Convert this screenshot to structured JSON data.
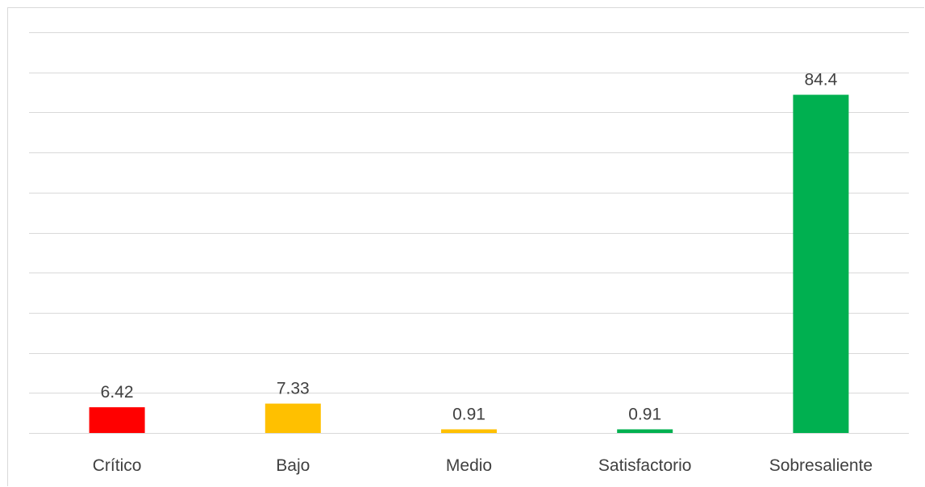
{
  "chart_data": {
    "type": "bar",
    "title": "",
    "xlabel": "",
    "ylabel": "",
    "categories": [
      "Crítico",
      "Bajo",
      "Medio",
      "Satisfactorio",
      "Sobresaliente"
    ],
    "values": [
      6.42,
      7.33,
      0.91,
      0.91,
      84.4
    ],
    "value_labels": [
      "6.42",
      "7.33",
      "0.91",
      "0.91",
      "84.4"
    ],
    "colors": [
      "#FF0000",
      "#FFC000",
      "#FFC000",
      "#00B050",
      "#00B050"
    ],
    "ylim": [
      0,
      100
    ],
    "ytick_step": 10,
    "y_axis_labels_visible": false,
    "grid": true,
    "legend": "none"
  }
}
